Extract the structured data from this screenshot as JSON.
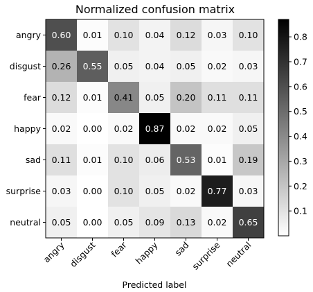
{
  "chart_data": {
    "type": "heatmap",
    "title": "Normalized confusion matrix",
    "xlabel": "Predicted label",
    "ylabel": "",
    "x_categories": [
      "angry",
      "disgust",
      "fear",
      "happy",
      "sad",
      "surprise",
      "neutral"
    ],
    "y_categories": [
      "angry",
      "disgust",
      "fear",
      "happy",
      "sad",
      "surprise",
      "neutral"
    ],
    "values": [
      [
        0.6,
        0.01,
        0.1,
        0.04,
        0.12,
        0.03,
        0.1
      ],
      [
        0.26,
        0.55,
        0.05,
        0.04,
        0.05,
        0.02,
        0.03
      ],
      [
        0.12,
        0.01,
        0.41,
        0.05,
        0.2,
        0.11,
        0.11
      ],
      [
        0.02,
        0.0,
        0.02,
        0.87,
        0.02,
        0.02,
        0.05
      ],
      [
        0.11,
        0.01,
        0.1,
        0.06,
        0.53,
        0.01,
        0.19
      ],
      [
        0.03,
        0.0,
        0.1,
        0.05,
        0.02,
        0.77,
        0.03
      ],
      [
        0.05,
        0.0,
        0.05,
        0.09,
        0.13,
        0.02,
        0.65
      ]
    ],
    "value_labels": [
      [
        "0.60",
        "0.01",
        "0.10",
        "0.04",
        "0.12",
        "0.03",
        "0.10"
      ],
      [
        "0.26",
        "0.55",
        "0.05",
        "0.04",
        "0.05",
        "0.02",
        "0.03"
      ],
      [
        "0.12",
        "0.01",
        "0.41",
        "0.05",
        "0.20",
        "0.11",
        "0.11"
      ],
      [
        "0.02",
        "0.00",
        "0.02",
        "0.87",
        "0.02",
        "0.02",
        "0.05"
      ],
      [
        "0.11",
        "0.01",
        "0.10",
        "0.06",
        "0.53",
        "0.01",
        "0.19"
      ],
      [
        "0.03",
        "0.00",
        "0.10",
        "0.05",
        "0.02",
        "0.77",
        "0.03"
      ],
      [
        "0.05",
        "0.00",
        "0.05",
        "0.09",
        "0.13",
        "0.02",
        "0.65"
      ]
    ],
    "color_range": [
      0.0,
      0.87
    ],
    "colormap": "greys",
    "colorbar": {
      "ticks": [
        0.1,
        0.2,
        0.3,
        0.4,
        0.5,
        0.6,
        0.7,
        0.8
      ],
      "tick_labels": [
        "0.1",
        "0.2",
        "0.3",
        "0.4",
        "0.5",
        "0.6",
        "0.7",
        "0.8"
      ]
    },
    "text_color_threshold": 0.435,
    "light_text_color": "#ffffff",
    "dark_text_color": "#000000",
    "grid": false,
    "xtick_rotation": -45
  }
}
